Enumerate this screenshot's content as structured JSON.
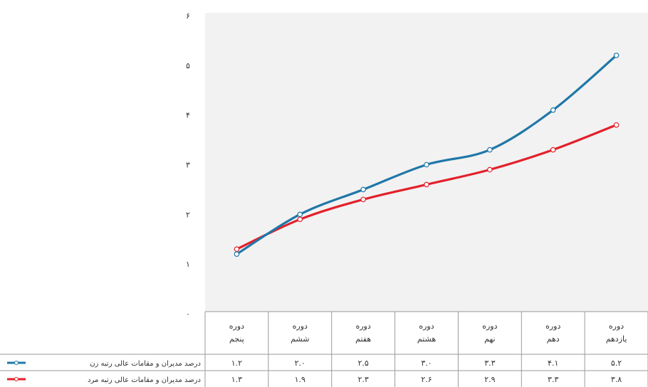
{
  "chart_data": {
    "type": "line",
    "categories": [
      [
        "دوره",
        "پنجم"
      ],
      [
        "دوره",
        "ششم"
      ],
      [
        "دوره",
        "هفتم"
      ],
      [
        "دوره",
        "هشتم"
      ],
      [
        "دوره",
        "نهم"
      ],
      [
        "دوره",
        "دهم"
      ],
      [
        "دوره",
        "یازدهم"
      ]
    ],
    "y_ticks": [
      "۰",
      "۱",
      "۲",
      "۳",
      "۴",
      "۵",
      "۶"
    ],
    "ylim": [
      0,
      6
    ],
    "grid": false,
    "series": [
      {
        "name": "درصد مدیران و مقامات عالی رتبه زن",
        "color": "#1f77a8",
        "values": [
          1.2,
          2.0,
          2.5,
          3.0,
          3.3,
          4.1,
          5.2
        ],
        "labels": [
          "۱.۲",
          "۲.۰",
          "۲.۵",
          "۳.۰",
          "۳.۳",
          "۴.۱",
          "۵.۲"
        ]
      },
      {
        "name": "درصد مدیران و مقامات عالی رتبه مرد",
        "color": "#e3202a",
        "values": [
          1.3,
          1.9,
          2.3,
          2.6,
          2.9,
          3.3,
          3.8
        ],
        "labels": [
          "۱.۳",
          "۱.۹",
          "۲.۳",
          "۲.۶",
          "۲.۹",
          "۳.۳",
          "۳.۸"
        ]
      }
    ],
    "legend": "data-table-left"
  }
}
